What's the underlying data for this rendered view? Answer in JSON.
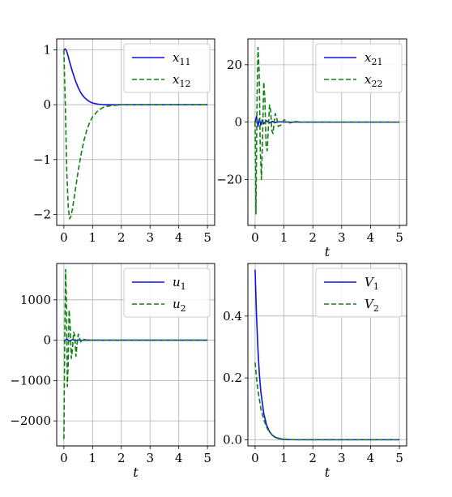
{
  "chart_data": [
    {
      "type": "line",
      "xlabel": "",
      "ylabel": "",
      "xlim": [
        -0.25,
        5.25
      ],
      "ylim": [
        -2.2,
        1.2
      ],
      "xticks": [
        0,
        1,
        2,
        3,
        4,
        5
      ],
      "yticks": [
        -2,
        -1,
        0,
        1
      ],
      "ytick_labels": [
        "−2",
        "−1",
        "0",
        "1"
      ],
      "grid": true,
      "legend_position": "upper right",
      "series": [
        {
          "name": "x11",
          "label_base": "x",
          "label_sub": "11",
          "color": "#1010e0",
          "dash": "solid",
          "x": [
            0,
            0.05,
            0.1,
            0.15,
            0.2,
            0.3,
            0.4,
            0.5,
            0.6,
            0.7,
            0.8,
            0.9,
            1.0,
            1.2,
            1.4,
            1.6,
            2,
            3,
            4,
            5
          ],
          "y": [
            1.0,
            1.02,
            0.97,
            0.88,
            0.78,
            0.6,
            0.44,
            0.31,
            0.21,
            0.14,
            0.09,
            0.055,
            0.03,
            0.01,
            0.0,
            0.0,
            0.0,
            0.0,
            0.0,
            0.0
          ]
        },
        {
          "name": "x12",
          "label_base": "x",
          "label_sub": "12",
          "color": "#108010",
          "dash": "dashed",
          "x": [
            0,
            0.05,
            0.1,
            0.15,
            0.2,
            0.25,
            0.3,
            0.4,
            0.5,
            0.6,
            0.7,
            0.8,
            0.9,
            1.0,
            1.2,
            1.4,
            1.6,
            1.8,
            2,
            3,
            4,
            5
          ],
          "y": [
            1.0,
            0.0,
            -1.2,
            -1.85,
            -2.08,
            -2.03,
            -1.9,
            -1.55,
            -1.2,
            -0.9,
            -0.65,
            -0.46,
            -0.32,
            -0.22,
            -0.1,
            -0.04,
            -0.02,
            -0.01,
            0.0,
            0.0,
            0.0,
            0.0
          ]
        }
      ]
    },
    {
      "type": "line",
      "xlabel": "t",
      "ylabel": "",
      "xlim": [
        -0.25,
        5.25
      ],
      "ylim": [
        -36,
        29
      ],
      "xticks": [
        0,
        1,
        2,
        3,
        4,
        5
      ],
      "yticks": [
        -20,
        0,
        20
      ],
      "ytick_labels": [
        "−20",
        "0",
        "20"
      ],
      "grid": true,
      "legend_position": "upper right",
      "series": [
        {
          "name": "x21",
          "label_base": "x",
          "label_sub": "21",
          "color": "#1010e0",
          "dash": "solid",
          "x": [
            0,
            0.05,
            0.1,
            0.15,
            0.2,
            0.25,
            0.3,
            0.4,
            0.5,
            0.6,
            0.7,
            0.8,
            1.0,
            1.2,
            1.5,
            2,
            3,
            4,
            5
          ],
          "y": [
            0,
            2.0,
            -1.5,
            1.2,
            -1.0,
            0.8,
            -0.6,
            0.5,
            -0.3,
            0.3,
            -0.2,
            0.1,
            0.05,
            0,
            0,
            0,
            0,
            0,
            0
          ]
        },
        {
          "name": "x22",
          "label_base": "x",
          "label_sub": "22",
          "color": "#108010",
          "dash": "dashed",
          "x": [
            0,
            0.03,
            0.07,
            0.1,
            0.14,
            0.18,
            0.22,
            0.26,
            0.3,
            0.34,
            0.38,
            0.42,
            0.46,
            0.5,
            0.54,
            0.58,
            0.62,
            0.66,
            0.7,
            0.75,
            0.8,
            0.9,
            1.0,
            1.1,
            1.2,
            1.4,
            1.6,
            2,
            3,
            4,
            5
          ],
          "y": [
            0,
            -32,
            10,
            26,
            18,
            -10,
            -20,
            -5,
            14,
            8,
            -8,
            -10,
            -2,
            6,
            4,
            -3,
            -4,
            0,
            3,
            1.5,
            -1.5,
            -1,
            0.8,
            0.5,
            -0.3,
            0.2,
            0,
            0,
            0,
            0,
            0
          ]
        }
      ]
    },
    {
      "type": "line",
      "xlabel": "t",
      "ylabel": "",
      "xlim": [
        -0.25,
        5.25
      ],
      "ylim": [
        -2620,
        1900
      ],
      "xticks": [
        0,
        1,
        2,
        3,
        4,
        5
      ],
      "yticks": [
        -2000,
        -1000,
        0,
        1000
      ],
      "ytick_labels": [
        "−2000",
        "−1000",
        "0",
        "1000"
      ],
      "grid": true,
      "legend_position": "upper right",
      "series": [
        {
          "name": "u1",
          "label_base": "u",
          "label_sub": "1",
          "color": "#1010e0",
          "dash": "solid",
          "x": [
            0,
            0.1,
            0.2,
            0.3,
            0.4,
            0.5,
            0.6,
            0.8,
            1.0,
            2,
            3,
            4,
            5
          ],
          "y": [
            -30,
            30,
            -20,
            15,
            -10,
            8,
            -5,
            2,
            0,
            0,
            0,
            0,
            0
          ]
        },
        {
          "name": "u2",
          "label_base": "u",
          "label_sub": "2",
          "color": "#108010",
          "dash": "dashed",
          "x": [
            0,
            0.03,
            0.06,
            0.09,
            0.12,
            0.15,
            0.18,
            0.22,
            0.26,
            0.3,
            0.34,
            0.38,
            0.42,
            0.46,
            0.5,
            0.55,
            0.6,
            0.7,
            0.8,
            1.0,
            2,
            3,
            4,
            5
          ],
          "y": [
            -2450,
            0,
            1750,
            900,
            -1150,
            -600,
            750,
            350,
            -450,
            -200,
            200,
            120,
            -400,
            -100,
            150,
            50,
            -60,
            20,
            0,
            0,
            0,
            0,
            0,
            0
          ]
        }
      ]
    },
    {
      "type": "line",
      "xlabel": "t",
      "ylabel": "",
      "xlim": [
        -0.25,
        5.25
      ],
      "ylim": [
        -0.02,
        0.57
      ],
      "xticks": [
        0,
        1,
        2,
        3,
        4,
        5
      ],
      "yticks": [
        0.0,
        0.2,
        0.4
      ],
      "ytick_labels": [
        "0.0",
        "0.2",
        "0.4"
      ],
      "grid": true,
      "legend_position": "upper right",
      "series": [
        {
          "name": "V1",
          "label_base": "V",
          "label_sub": "1",
          "color": "#1010e0",
          "dash": "solid",
          "x": [
            0,
            0.05,
            0.1,
            0.15,
            0.2,
            0.3,
            0.4,
            0.5,
            0.6,
            0.7,
            0.8,
            1.0,
            1.2,
            1.5,
            2,
            3,
            4,
            5
          ],
          "y": [
            0.55,
            0.4,
            0.29,
            0.21,
            0.155,
            0.085,
            0.047,
            0.026,
            0.014,
            0.008,
            0.004,
            0.001,
            0.0003,
            0.0,
            0.0,
            0.0,
            0.0,
            0.0
          ]
        },
        {
          "name": "V2",
          "label_base": "V",
          "label_sub": "2",
          "color": "#108010",
          "dash": "dashed",
          "x": [
            0,
            0.05,
            0.1,
            0.15,
            0.2,
            0.3,
            0.4,
            0.5,
            0.6,
            0.7,
            0.8,
            1.0,
            1.2,
            1.5,
            2,
            3,
            4,
            5
          ],
          "y": [
            0.25,
            0.2,
            0.16,
            0.13,
            0.1,
            0.065,
            0.04,
            0.025,
            0.015,
            0.009,
            0.005,
            0.002,
            0.0005,
            0.0,
            0.0,
            0.0,
            0.0,
            0.0
          ]
        }
      ]
    }
  ]
}
